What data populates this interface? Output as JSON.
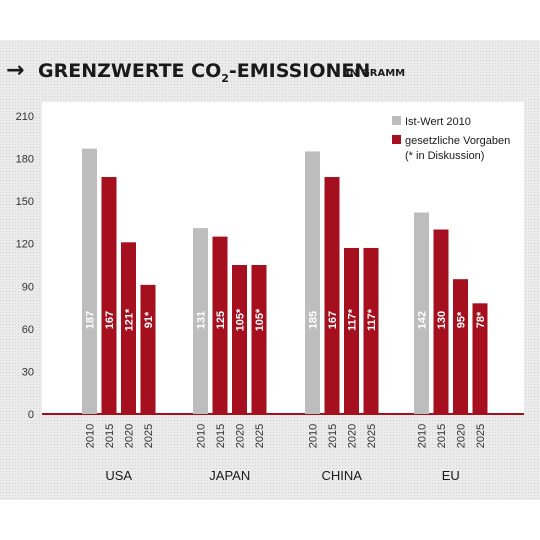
{
  "header": {
    "arrow": "→",
    "title_pre": "GRENZWERTE CO",
    "title_sub": "2",
    "title_post": "-EMISSIONEN",
    "unit": "IN GRAMM"
  },
  "colors": {
    "ist": "#bdbdbd",
    "vorgabe": "#a50f1e",
    "axis": "#a50f1e",
    "title": "#1a1a1a"
  },
  "chart_data": {
    "type": "bar",
    "title": "GRENZWERTE CO2-EMISSIONEN",
    "ylim": [
      0,
      210
    ],
    "yticks": [
      "0",
      "30",
      "60",
      "90",
      "120",
      "150",
      "180",
      "210"
    ],
    "grid": false,
    "legend": {
      "placement": "top-right",
      "items": [
        {
          "label": "Ist-Wert 2010",
          "color": "#bdbdbd"
        },
        {
          "label": "gesetzliche Vorgaben",
          "sublabel": "(* in Diskussion)",
          "color": "#a50f1e"
        }
      ]
    },
    "groups": [
      {
        "name": "USA",
        "bars": [
          {
            "year": "2010",
            "value": 187,
            "label": "187",
            "kind": "ist"
          },
          {
            "year": "2015",
            "value": 167,
            "label": "167",
            "kind": "vorgabe"
          },
          {
            "year": "2020",
            "value": 121,
            "label": "121*",
            "kind": "vorgabe"
          },
          {
            "year": "2025",
            "value": 91,
            "label": "91*",
            "kind": "vorgabe"
          }
        ]
      },
      {
        "name": "JAPAN",
        "bars": [
          {
            "year": "2010",
            "value": 131,
            "label": "131",
            "kind": "ist"
          },
          {
            "year": "2015",
            "value": 125,
            "label": "125",
            "kind": "vorgabe"
          },
          {
            "year": "2020",
            "value": 105,
            "label": "105*",
            "kind": "vorgabe"
          },
          {
            "year": "2025",
            "value": 105,
            "label": "105*",
            "kind": "vorgabe"
          }
        ]
      },
      {
        "name": "CHINA",
        "bars": [
          {
            "year": "2010",
            "value": 185,
            "label": "185",
            "kind": "ist"
          },
          {
            "year": "2015",
            "value": 167,
            "label": "167",
            "kind": "vorgabe"
          },
          {
            "year": "2020",
            "value": 117,
            "label": "117*",
            "kind": "vorgabe"
          },
          {
            "year": "2025",
            "value": 117,
            "label": "117*",
            "kind": "vorgabe"
          }
        ]
      },
      {
        "name": "EU",
        "bars": [
          {
            "year": "2010",
            "value": 142,
            "label": "142",
            "kind": "ist"
          },
          {
            "year": "2015",
            "value": 130,
            "label": "130",
            "kind": "vorgabe"
          },
          {
            "year": "2020",
            "value": 95,
            "label": "95*",
            "kind": "vorgabe"
          },
          {
            "year": "2025",
            "value": 78,
            "label": "78*",
            "kind": "vorgabe"
          }
        ]
      }
    ]
  }
}
